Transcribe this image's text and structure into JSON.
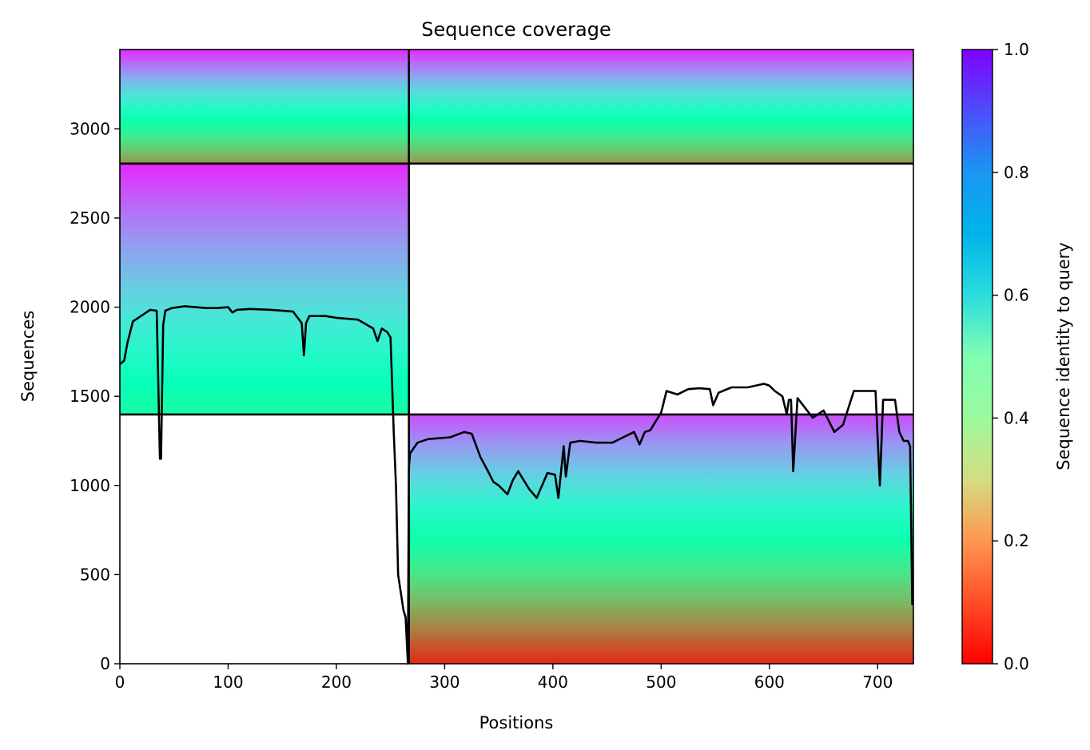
{
  "chart_data": {
    "type": "heatmap",
    "title": "Sequence coverage",
    "xlabel": "Positions",
    "ylabel": "Sequences",
    "xlim": [
      0,
      733
    ],
    "ylim": [
      0,
      3445
    ],
    "x_ticks": [
      0,
      100,
      200,
      300,
      400,
      500,
      600,
      700
    ],
    "y_ticks": [
      0,
      500,
      1000,
      1500,
      2000,
      2500,
      3000
    ],
    "colorbar": {
      "label": "Sequence identity to query",
      "range": [
        0,
        1
      ],
      "ticks": [
        0.0,
        0.2,
        0.4,
        0.6,
        0.8,
        1.0
      ],
      "tick_labels": [
        "0.0",
        "0.2",
        "0.4",
        "0.6",
        "0.8",
        "1.0"
      ],
      "colormap": "rainbow_r"
    },
    "block_separators": {
      "vertical_x": [
        267
      ],
      "horizontal_y": [
        1398,
        2805
      ]
    },
    "coverage_blocks": [
      {
        "x": [
          0,
          267
        ],
        "y": [
          2805,
          3445
        ],
        "identity_bottom": 0.2,
        "identity_top": 0.95
      },
      {
        "x": [
          267,
          733
        ],
        "y": [
          2805,
          3445
        ],
        "identity_bottom": 0.2,
        "identity_top": 0.95
      },
      {
        "x": [
          0,
          267
        ],
        "y": [
          1398,
          2805
        ],
        "identity_bottom": 0.45,
        "identity_top": 0.95
      },
      {
        "x": [
          267,
          733
        ],
        "y": [
          0,
          1398
        ],
        "identity_bottom": 0.05,
        "identity_top": 0.9
      }
    ],
    "coverage_line": {
      "name": "",
      "x": [
        0,
        4,
        7,
        12,
        28,
        34,
        37,
        38,
        40,
        42,
        48,
        60,
        70,
        80,
        90,
        100,
        104,
        108,
        120,
        140,
        160,
        168,
        170,
        172,
        175,
        190,
        200,
        220,
        234,
        238,
        242,
        247,
        250,
        253,
        255,
        257,
        260,
        262,
        264,
        266,
        267,
        268,
        275,
        285,
        305,
        318,
        325,
        333,
        340,
        345,
        350,
        358,
        363,
        368,
        378,
        385,
        395,
        402,
        405,
        410,
        412,
        416,
        425,
        440,
        455,
        465,
        475,
        480,
        485,
        490,
        500,
        505,
        515,
        525,
        535,
        545,
        548,
        553,
        565,
        580,
        595,
        600,
        605,
        612,
        616,
        618,
        620,
        622,
        626,
        640,
        650,
        660,
        668,
        678,
        690,
        698,
        702,
        705,
        708,
        716,
        720,
        724,
        728,
        730,
        732
      ],
      "y": [
        1680,
        1700,
        1800,
        1920,
        1985,
        1980,
        1150,
        1150,
        1900,
        1980,
        1995,
        2005,
        2000,
        1995,
        1995,
        2000,
        1970,
        1985,
        1990,
        1985,
        1975,
        1910,
        1730,
        1910,
        1950,
        1950,
        1940,
        1930,
        1880,
        1810,
        1880,
        1860,
        1830,
        1300,
        1000,
        500,
        380,
        300,
        260,
        0,
        1100,
        1180,
        1240,
        1260,
        1270,
        1300,
        1290,
        1160,
        1080,
        1020,
        1000,
        950,
        1030,
        1080,
        980,
        930,
        1070,
        1060,
        930,
        1220,
        1050,
        1240,
        1250,
        1240,
        1240,
        1270,
        1300,
        1230,
        1300,
        1310,
        1410,
        1530,
        1510,
        1540,
        1545,
        1540,
        1450,
        1520,
        1550,
        1550,
        1570,
        1560,
        1530,
        1500,
        1400,
        1480,
        1480,
        1080,
        1490,
        1380,
        1420,
        1300,
        1340,
        1530,
        1530,
        1530,
        1000,
        1480,
        1480,
        1480,
        1300,
        1250,
        1250,
        1220,
        330
      ]
    }
  }
}
